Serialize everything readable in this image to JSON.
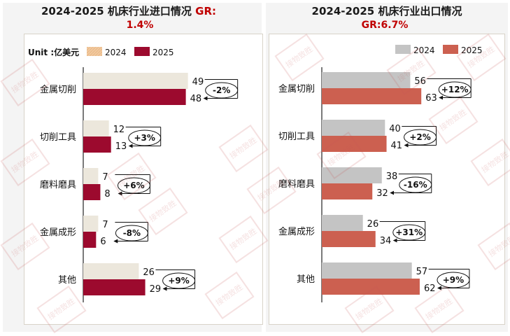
{
  "unit_label": "Unit :亿美元",
  "watermark": "接物致胜",
  "colors": {
    "left_2024": "#ece7dc",
    "left_2025": "#9c0a2e",
    "left_legend_2024": "#f2c9a0",
    "right_2024": "#c4c4c4",
    "right_2025": "#cc6050"
  },
  "chart_data": [
    {
      "type": "bar",
      "orientation": "horizontal",
      "title": "2024-2025  机床行业进口情况",
      "gr_label": "GR:",
      "gr_value": "1.4%",
      "categories": [
        "金属切削",
        "切削工具",
        "磨料磨具",
        "金属成形",
        "其他"
      ],
      "series": [
        {
          "name": "2024",
          "values": [
            49,
            12,
            7,
            7,
            26
          ]
        },
        {
          "name": "2025",
          "values": [
            48,
            13,
            8,
            6,
            29
          ]
        }
      ],
      "changes": [
        "-2%",
        "+3%",
        "+6%",
        "-8%",
        "+9%"
      ],
      "xlim": [
        0,
        55
      ]
    },
    {
      "type": "bar",
      "orientation": "horizontal",
      "title": "2024-2025  机床行业出口情况",
      "gr_label": "GR:",
      "gr_value": "6.7%",
      "categories": [
        "金属切削",
        "切削工具",
        "磨料磨具",
        "金属成形",
        "其他"
      ],
      "series": [
        {
          "name": "2024",
          "values": [
            56,
            40,
            38,
            26,
            57
          ]
        },
        {
          "name": "2025",
          "values": [
            63,
            41,
            32,
            34,
            62
          ]
        }
      ],
      "changes": [
        "+12%",
        "+2%",
        "-16%",
        "+31%",
        "+9%"
      ],
      "xlim": [
        0,
        70
      ]
    }
  ]
}
